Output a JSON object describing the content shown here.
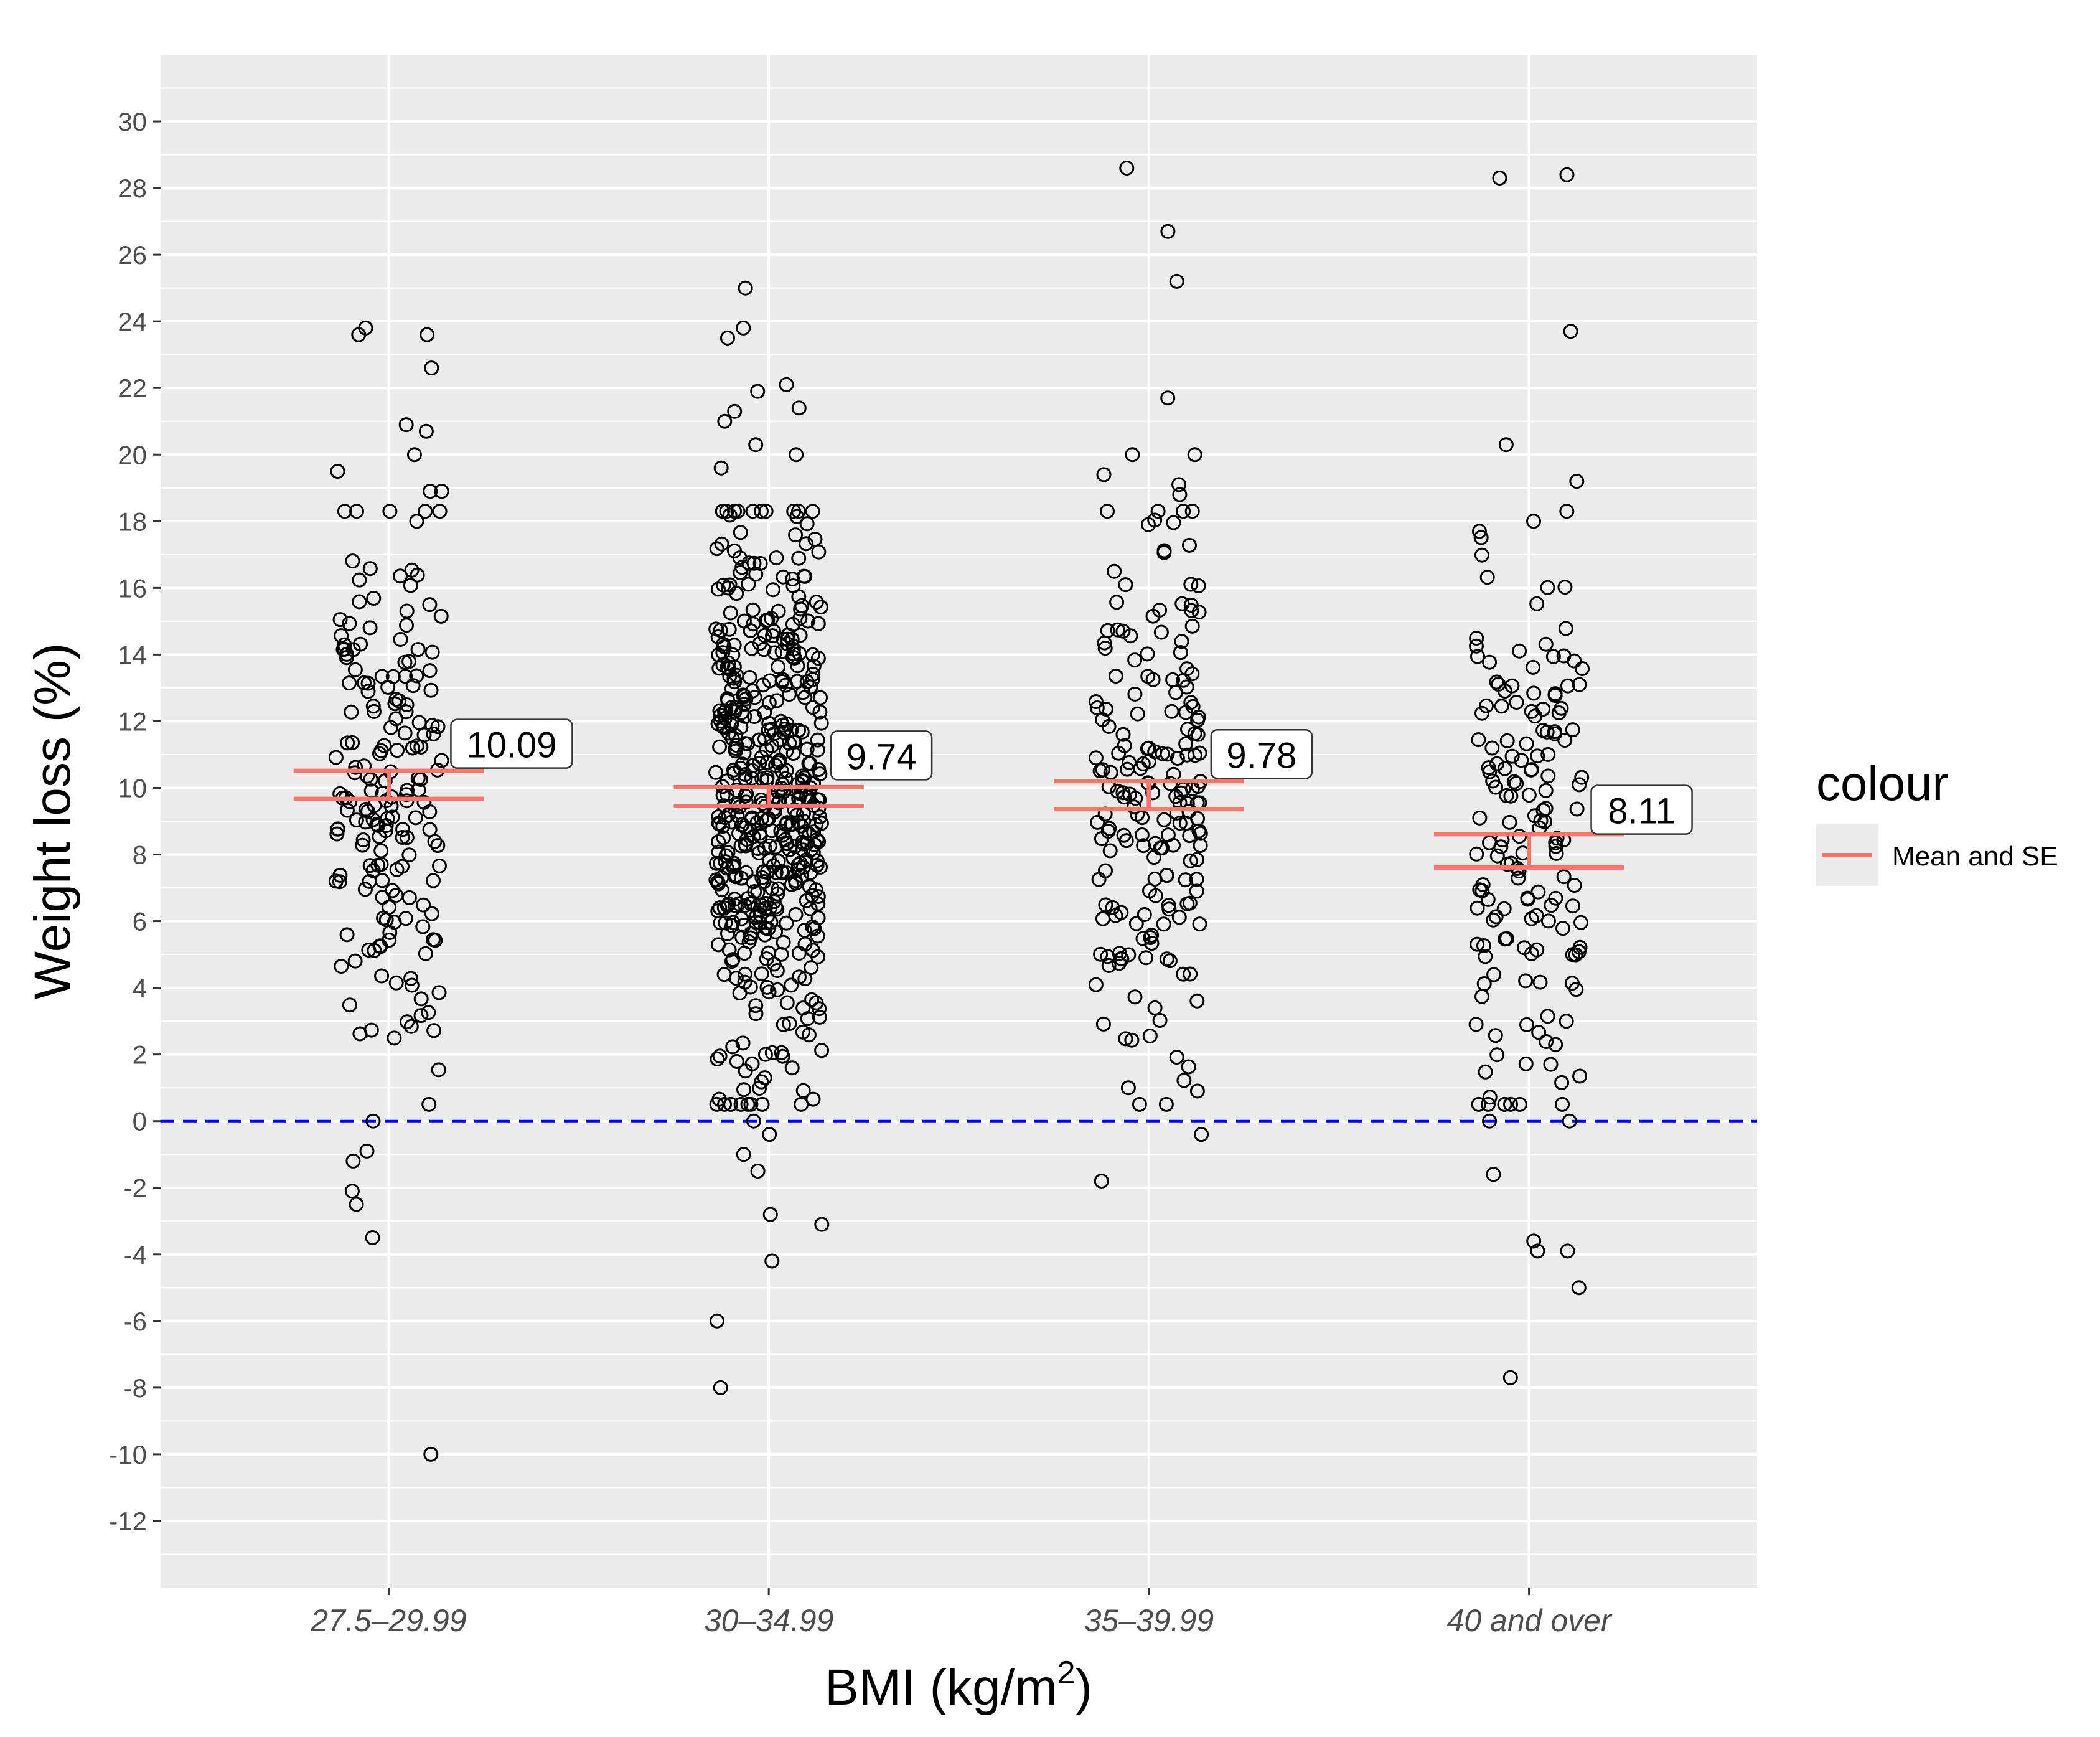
{
  "chart_data": {
    "type": "scatter",
    "title": "",
    "xlabel": "BMI (kg/m",
    "xlabel_superscript": "2",
    "xlabel_close": ")",
    "ylabel": "Weight loss (%)",
    "categories": [
      "27.5–29.99",
      "30–34.99",
      "35–39.99",
      "40 and over"
    ],
    "ylim": [
      -14,
      32
    ],
    "yticks": [
      -12,
      -10,
      -8,
      -6,
      -4,
      -2,
      0,
      2,
      4,
      6,
      8,
      10,
      12,
      14,
      16,
      18,
      20,
      22,
      24,
      26,
      28,
      30
    ],
    "grid": true,
    "reference_line": {
      "y": 0,
      "color": "#0000ff",
      "style": "dashed"
    },
    "legend": {
      "title": "colour",
      "label": "Mean and SE",
      "color": "#f8766d",
      "position": "right"
    },
    "summary": [
      {
        "category": "27.5–29.99",
        "mean": 10.09,
        "se": 0.42,
        "label": "10.09"
      },
      {
        "category": "30–34.99",
        "mean": 9.74,
        "se": 0.28,
        "label": "9.74"
      },
      {
        "category": "35–39.99",
        "mean": 9.78,
        "se": 0.42,
        "label": "9.78"
      },
      {
        "category": "40 and over",
        "mean": 8.11,
        "se": 0.5,
        "label": "8.11"
      }
    ],
    "series": [
      {
        "name": "27.5–29.99",
        "n_approx": 200,
        "min": -10.0,
        "max": 23.8,
        "outliers": [
          23.6,
          23.6,
          23.8,
          22.6,
          20.9,
          20.7,
          20.0,
          19.5,
          18.9,
          18.9,
          18.0,
          -0.9,
          -1.2,
          -2.1,
          -2.5,
          -3.5,
          -10.0,
          0.0
        ]
      },
      {
        "name": "30–34.99",
        "n_approx": 520,
        "min": -8.0,
        "max": 25.0,
        "outliers": [
          25.0,
          23.8,
          23.5,
          22.1,
          21.9,
          21.4,
          21.3,
          21.0,
          20.3,
          20.0,
          19.6,
          -0.4,
          -1.0,
          -1.5,
          -2.8,
          -3.1,
          -4.2,
          -6.0,
          -8.0,
          0.0
        ]
      },
      {
        "name": "35–39.99",
        "n_approx": 200,
        "min": -1.8,
        "max": 28.6,
        "outliers": [
          28.6,
          26.7,
          25.2,
          21.7,
          20.0,
          20.0,
          19.4,
          19.1,
          18.8,
          -0.4,
          -1.8,
          1.0,
          0.9
        ]
      },
      {
        "name": "40 and over",
        "n_approx": 170,
        "min": -7.7,
        "max": 28.4,
        "outliers": [
          28.3,
          28.4,
          23.7,
          20.3,
          19.2,
          18.0,
          17.7,
          -1.6,
          -3.6,
          -3.9,
          -3.9,
          -5.0,
          -7.7,
          0.0,
          0.0
        ]
      }
    ]
  }
}
